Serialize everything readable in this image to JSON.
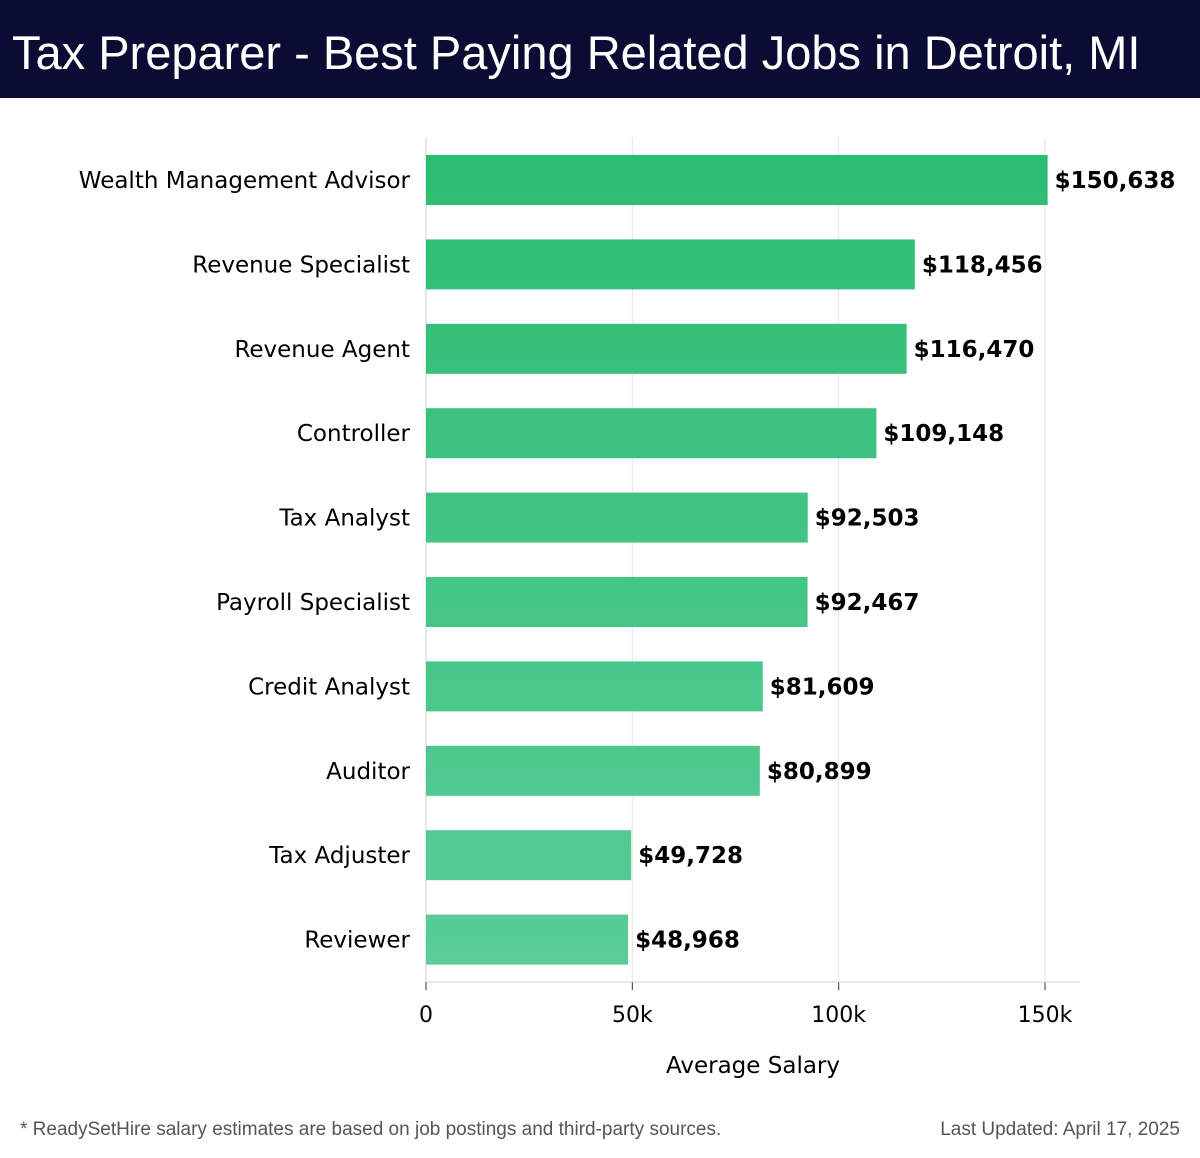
{
  "page": {
    "title": "Tax Preparer - Best Paying Related Jobs in Detroit, MI",
    "footnote": "* ReadySetHire salary estimates are based on job postings and third-party sources.",
    "updated": "Last Updated: April 17, 2025"
  },
  "colors": {
    "header_bg": "#0b0c33",
    "bar_top": "#2bbd72",
    "bar_bottom": "#5acd98",
    "grid": "#e3e3e3",
    "value_text": "#000000"
  },
  "chart_data": {
    "type": "bar",
    "orientation": "horizontal",
    "categories": [
      "Wealth Management Advisor",
      "Revenue Specialist",
      "Revenue Agent",
      "Controller",
      "Tax Analyst",
      "Payroll Specialist",
      "Credit Analyst",
      "Auditor",
      "Tax Adjuster",
      "Reviewer"
    ],
    "values": [
      150638,
      118456,
      116470,
      109148,
      92503,
      92467,
      81609,
      80899,
      49728,
      48968
    ],
    "value_labels": [
      "$150,638",
      "$118,456",
      "$116,470",
      "$109,148",
      "$92,503",
      "$92,467",
      "$81,609",
      "$80,899",
      "$49,728",
      "$48,968"
    ],
    "xlabel": "Average Salary",
    "ylabel": "",
    "xlim": [
      0,
      158000
    ],
    "xticks": [
      0,
      50000,
      100000,
      150000
    ],
    "xtick_labels": [
      "0",
      "50k",
      "100k",
      "150k"
    ],
    "grid": true
  }
}
